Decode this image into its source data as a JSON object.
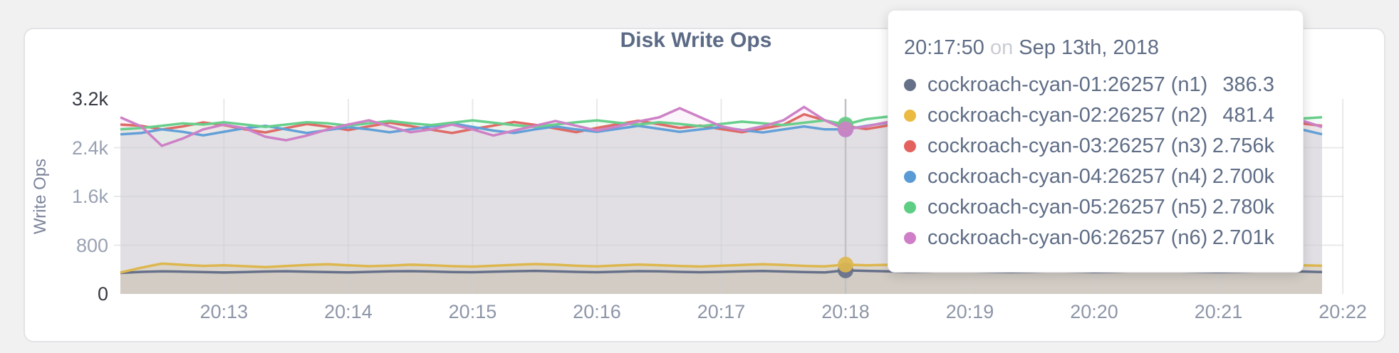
{
  "palette": {
    "page_background": "#f1f1f2",
    "card_background": "#ffffff",
    "card_border": "#e3e3e6",
    "text_slate": "#5f6d86",
    "text_muted_tick": "#99a1b2",
    "text_strong_tick": "#363a43",
    "text_light": "#c9ccd4",
    "grid_color": "#cfcfd2",
    "hover_line_color": "#c2c2c4"
  },
  "chart_data": {
    "type": "line",
    "title": "Disk Write Ops",
    "xlabel": "",
    "ylabel": "Write Ops",
    "ylim": [
      0,
      3200
    ],
    "grid": true,
    "legend_position": "none",
    "x_start": "20:12:10",
    "x_end": "20:21:50",
    "x_step_seconds": 10,
    "categories": [
      "20:13",
      "20:14",
      "20:15",
      "20:16",
      "20:17",
      "20:18",
      "20:19",
      "20:20",
      "20:21",
      "20:22"
    ],
    "yticks": [
      {
        "label": "3.2k",
        "value": 3200,
        "strong": true
      },
      {
        "label": "2.4k",
        "value": 2400,
        "strong": false
      },
      {
        "label": "1.6k",
        "value": 1600,
        "strong": false
      },
      {
        "label": "800",
        "value": 800,
        "strong": false
      },
      {
        "label": "0",
        "value": 0,
        "strong": true
      }
    ],
    "series": [
      {
        "name": "cockroach-cyan-01:26257 (n1)",
        "color": "#667089",
        "fill_opacity": 0.1,
        "values": [
          345,
          362,
          370,
          366,
          358,
          352,
          360,
          368,
          372,
          366,
          358,
          354,
          362,
          370,
          374,
          368,
          360,
          356,
          364,
          372,
          378,
          370,
          362,
          356,
          366,
          374,
          370,
          362,
          356,
          362,
          370,
          376,
          368,
          360,
          354,
          386,
          378,
          370,
          362,
          368,
          376,
          372,
          364,
          358,
          366,
          374,
          368,
          360,
          366,
          374,
          380,
          372,
          364,
          358,
          366,
          372,
          376,
          368,
          360
        ]
      },
      {
        "name": "cockroach-cyan-02:26257 (n2)",
        "color": "#ddb74e",
        "fill_opacity": 0.18,
        "values": [
          352,
          430,
          497,
          478,
          460,
          470,
          455,
          440,
          458,
          476,
          488,
          470,
          455,
          465,
          480,
          470,
          455,
          448,
          462,
          478,
          490,
          480,
          462,
          452,
          468,
          482,
          472,
          458,
          450,
          462,
          476,
          488,
          475,
          460,
          452,
          481,
          470,
          478,
          490,
          478,
          462,
          455,
          468,
          480,
          470,
          458,
          465,
          478,
          488,
          476,
          462,
          468,
          480,
          490,
          478,
          462,
          455,
          470,
          462
        ]
      },
      {
        "name": "cockroach-cyan-03:26257 (n3)",
        "color": "#df6a66",
        "fill_opacity": 0.085,
        "values": [
          2780,
          2760,
          2700,
          2748,
          2815,
          2770,
          2702,
          2650,
          2722,
          2788,
          2745,
          2690,
          2750,
          2810,
          2755,
          2695,
          2640,
          2705,
          2762,
          2822,
          2775,
          2715,
          2655,
          2725,
          2785,
          2842,
          2785,
          2725,
          2762,
          2705,
          2655,
          2715,
          2775,
          2948,
          2848,
          2756,
          2705,
          2762,
          2822,
          2765,
          2705,
          2648,
          2705,
          2762,
          2705,
          2758,
          2818,
          2758,
          2700,
          2752,
          2802,
          2742,
          2685,
          2745,
          2798,
          2748,
          2690,
          2798,
          2758
        ]
      },
      {
        "name": "cockroach-cyan-04:26257 (n4)",
        "color": "#63a0d8",
        "fill_opacity": 0.085,
        "values": [
          2618,
          2640,
          2700,
          2662,
          2602,
          2662,
          2720,
          2758,
          2700,
          2642,
          2690,
          2738,
          2700,
          2652,
          2700,
          2748,
          2798,
          2740,
          2680,
          2642,
          2700,
          2748,
          2700,
          2660,
          2710,
          2758,
          2710,
          2660,
          2700,
          2740,
          2690,
          2650,
          2700,
          2748,
          2700,
          2700,
          2758,
          2808,
          2758,
          2700,
          2650,
          2700,
          2740,
          2690,
          2738,
          2700,
          2650,
          2700,
          2740,
          2788,
          2740,
          2690,
          2730,
          2690,
          2650,
          2700,
          2748,
          2700,
          2620
        ]
      },
      {
        "name": "cockroach-cyan-05:26257 (n5)",
        "color": "#68cf8c",
        "fill_opacity": 0.085,
        "values": [
          2700,
          2722,
          2760,
          2798,
          2780,
          2818,
          2780,
          2742,
          2780,
          2818,
          2800,
          2762,
          2800,
          2838,
          2800,
          2770,
          2810,
          2848,
          2810,
          2770,
          2742,
          2780,
          2818,
          2848,
          2810,
          2780,
          2818,
          2790,
          2752,
          2790,
          2828,
          2800,
          2770,
          2810,
          2848,
          2780,
          2868,
          2908,
          2858,
          2810,
          2780,
          2818,
          2858,
          2818,
          2790,
          2828,
          2790,
          2752,
          2790,
          2828,
          2800,
          2770,
          2810,
          2848,
          2810,
          2780,
          2828,
          2878,
          2900
        ]
      },
      {
        "name": "cockroach-cyan-06:26257 (n6)",
        "color": "#ce81c6",
        "fill_opacity": 0.085,
        "values": [
          2898,
          2750,
          2430,
          2550,
          2700,
          2778,
          2720,
          2580,
          2522,
          2600,
          2700,
          2780,
          2848,
          2750,
          2652,
          2700,
          2778,
          2700,
          2600,
          2680,
          2758,
          2838,
          2760,
          2680,
          2750,
          2830,
          2898,
          3048,
          2898,
          2750,
          2680,
          2750,
          2850,
          3068,
          2850,
          2701,
          2750,
          2818,
          2750,
          2680,
          2740,
          2818,
          2760,
          2700,
          2780,
          2858,
          2780,
          2700,
          2760,
          2838,
          2898,
          2820,
          2740,
          2800,
          2878,
          2800,
          2720,
          2848,
          2740
        ]
      }
    ]
  },
  "tooltip": {
    "time": "20:17:50",
    "conjunction": "on",
    "date": "Sep 13th, 2018",
    "hover_index": 35,
    "rows": [
      {
        "label": "cockroach-cyan-01:26257 (n1)",
        "value": "386.3",
        "color": "#667089"
      },
      {
        "label": "cockroach-cyan-02:26257 (n2)",
        "value": "481.4",
        "color": "#eaba42"
      },
      {
        "label": "cockroach-cyan-03:26257 (n3)",
        "value": "2.756k",
        "color": "#e4625e"
      },
      {
        "label": "cockroach-cyan-04:26257 (n4)",
        "value": "2.700k",
        "color": "#5b9bd5"
      },
      {
        "label": "cockroach-cyan-05:26257 (n5)",
        "value": "2.780k",
        "color": "#5fce85"
      },
      {
        "label": "cockroach-cyan-06:26257 (n6)",
        "value": "2.701k",
        "color": "#ce7fc7"
      }
    ]
  }
}
